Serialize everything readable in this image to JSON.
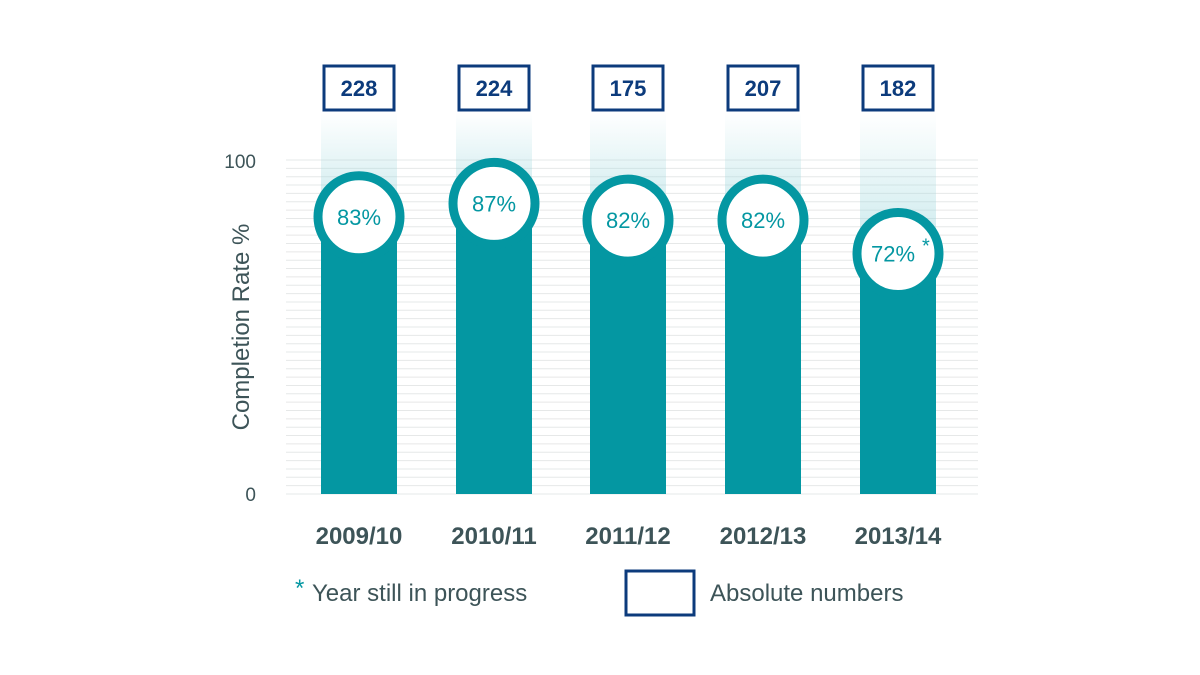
{
  "colors": {
    "bar": "#0497a2",
    "bar_fade": "#9fd8de",
    "box": "#0c3b7c",
    "text": "#3d5458",
    "grid": "#e6e8e8",
    "accent": "#0497a2"
  },
  "chart_data": {
    "type": "bar",
    "ylabel": "Completion Rate %",
    "ylim": [
      0,
      100
    ],
    "yticks": [
      "0",
      "100"
    ],
    "grid": true,
    "categories": [
      "2009/10",
      "2010/11",
      "2011/12",
      "2012/13",
      "2013/14"
    ],
    "values": [
      83,
      87,
      82,
      82,
      72
    ],
    "value_labels": [
      "83%",
      "87%",
      "82%",
      "82%",
      "72%"
    ],
    "asterisk_index": 4,
    "absolute_numbers": [
      228,
      224,
      175,
      207,
      182
    ]
  },
  "legend": {
    "asterisk": "*",
    "in_progress": "Year still in progress",
    "absolute": "Absolute numbers"
  }
}
